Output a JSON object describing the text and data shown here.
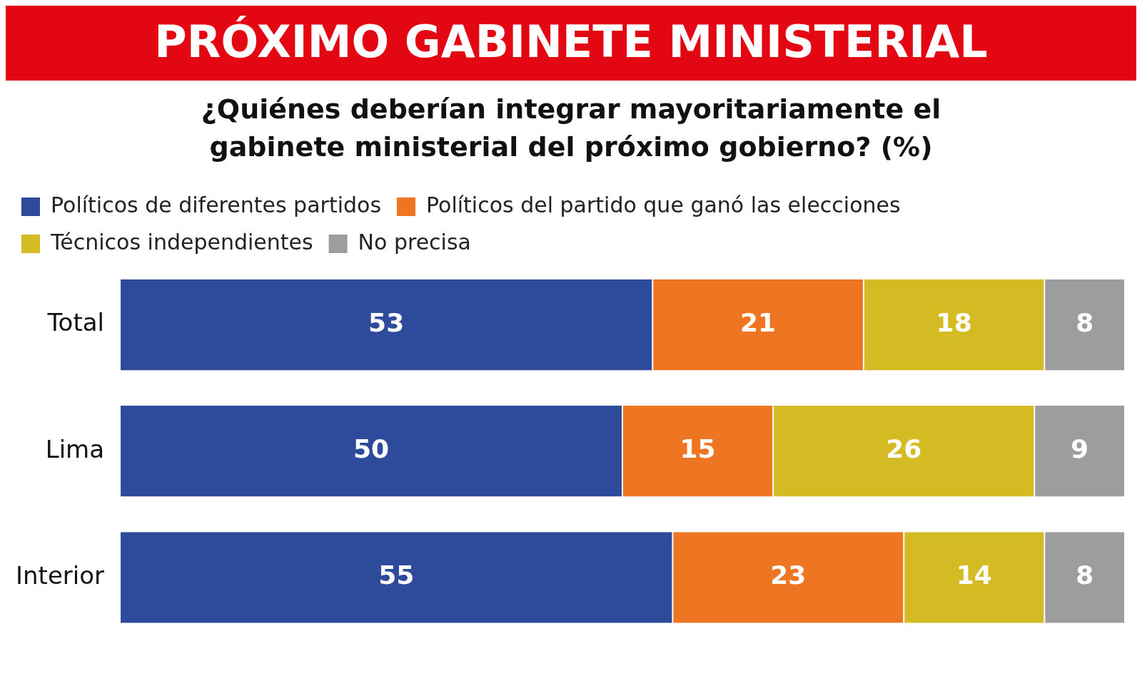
{
  "chart_data": {
    "type": "bar",
    "title": "PRÓXIMO GABINETE MINISTERIAL",
    "subtitle": "¿Quiénes deberían integrar mayoritariamente el gabinete ministerial del próximo gobierno? (%)",
    "categories": [
      "Total",
      "Lima",
      "Interior"
    ],
    "orientation": "horizontal",
    "stacked": true,
    "data_labels": true,
    "legend": "top left",
    "tick_labels": "y",
    "xlim": [
      0,
      100
    ],
    "series": [
      {
        "name": "Políticos de diferentes partidos",
        "color": "#2e4a9a",
        "values": [
          53,
          50,
          55
        ]
      },
      {
        "name": "Políticos del partido que ganó las elecciones",
        "color": "#ee7623",
        "values": [
          21,
          15,
          23
        ]
      },
      {
        "name": "Técnicos independientes",
        "color": "#d4bb23",
        "values": [
          18,
          26,
          14
        ]
      },
      {
        "name": "No precisa",
        "color": "#9d9d9d",
        "values": [
          8,
          9,
          8
        ]
      }
    ]
  }
}
